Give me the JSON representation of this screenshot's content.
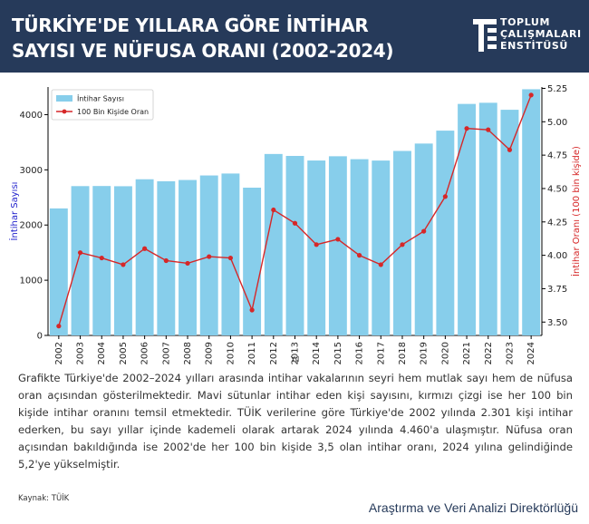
{
  "header": {
    "title": "TÜRKİYE'DE YILLARA GÖRE İNTİHAR SAYISI VE NÜFUSA ORANI (2002-2024)",
    "brand_lines": [
      "TOPLUM",
      "ÇALIŞMALARI",
      "ENSTİTÜSÜ"
    ]
  },
  "chart_data": {
    "type": "bar",
    "title": "",
    "categories": [
      "2002",
      "2003",
      "2004",
      "2005",
      "2006",
      "2007",
      "2008",
      "2009",
      "2010",
      "2011",
      "2012",
      "2013",
      "2014",
      "2015",
      "2016",
      "2017",
      "2018",
      "2019",
      "2020",
      "2021",
      "2022",
      "2023",
      "2024"
    ],
    "xlabel": "Yıl",
    "ylabel": "İntihar Sayısı",
    "ylabel_right": "İntihar Oranı (100 bin kişide)",
    "ylim": [
      0,
      4500
    ],
    "yticks": [
      0,
      1000,
      2000,
      3000,
      4000
    ],
    "ylim_right": [
      3.4,
      5.26
    ],
    "yticks_right": [
      "3.50",
      "3.75",
      "4.00",
      "4.25",
      "4.50",
      "4.75",
      "5.00",
      "5.25"
    ],
    "legend_position": "top-left",
    "series": [
      {
        "name": "İntihar Sayısı",
        "type": "bar",
        "axis": "left",
        "color": "#87ceeb",
        "values": [
          2301,
          2705,
          2707,
          2703,
          2829,
          2793,
          2816,
          2898,
          2933,
          2677,
          3287,
          3252,
          3169,
          3246,
          3193,
          3168,
          3342,
          3476,
          3710,
          4194,
          4215,
          4088,
          4460
        ]
      },
      {
        "name": "100 Bin Kişide Oran",
        "type": "line",
        "axis": "right",
        "color": "#d62728",
        "values": [
          3.47,
          4.02,
          3.98,
          3.93,
          4.05,
          3.96,
          3.94,
          3.99,
          3.98,
          3.59,
          4.34,
          4.24,
          4.08,
          4.12,
          4.0,
          3.93,
          4.08,
          4.18,
          4.44,
          4.95,
          4.94,
          4.79,
          5.2
        ]
      }
    ]
  },
  "body": {
    "description": "Grafikte Türkiye'de 2002–2024 yılları arasında intihar vakalarının seyri hem mutlak sayı hem de nüfusa oran açısından gösterilmektedir. Mavi sütunlar intihar eden kişi sayısını, kırmızı çizgi ise her 100 bin kişide intihar oranını temsil etmektedir. TÜİK verilerine göre Türkiye'de 2002 yılında 2.301 kişi intihar ederken, bu sayı yıllar içinde kademeli olarak artarak 2024 yılında 4.460'a ulaşmıştır. Nüfusa oran açısından bakıldığında ise 2002'de her 100 bin kişide 3,5 olan intihar oranı, 2024 yılına gelindiğinde 5,2'ye yükselmiştir.",
    "source": "Kaynak: TÜİK",
    "department": "Araştırma ve Veri Analizi Direktörlüğü"
  },
  "colors": {
    "header_bg": "#263a5a",
    "bar": "#87ceeb",
    "line": "#d62728",
    "left_axis_label": "#1f1fcc",
    "right_axis_label": "#d62728"
  }
}
